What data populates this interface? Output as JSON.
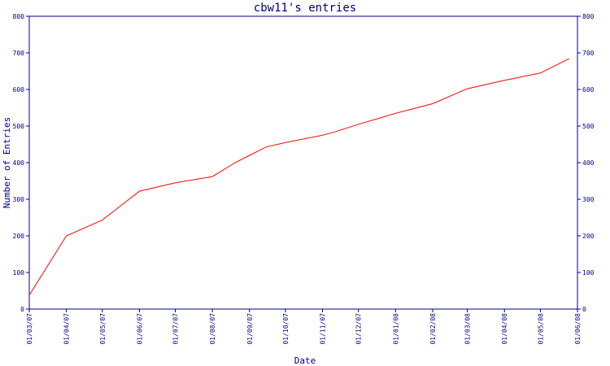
{
  "chart_data": {
    "type": "line",
    "title": "cbw11's entries",
    "xlabel": "Date",
    "ylabel": "Number of Entries",
    "ylim": [
      0,
      800
    ],
    "yticks": [
      0,
      100,
      200,
      300,
      400,
      500,
      600,
      700,
      800
    ],
    "x_tick_labels": [
      "01/03/07",
      "01/04/07",
      "01/05/07",
      "01/06/07",
      "01/07/07",
      "01/08/07",
      "01/09/07",
      "01/10/07",
      "01/11/07",
      "01/12/07",
      "01/01/08",
      "01/02/08",
      "01/03/08",
      "01/04/08",
      "01/05/08",
      "01/06/08"
    ],
    "y_axis_right": true,
    "grid": false,
    "series": [
      {
        "color": "#ff0000",
        "points": [
          {
            "x": "2007-03-01",
            "y": 38
          },
          {
            "x": "2007-04-01",
            "y": 200
          },
          {
            "x": "2007-05-01",
            "y": 243
          },
          {
            "x": "2007-06-01",
            "y": 322
          },
          {
            "x": "2007-07-01",
            "y": 345
          },
          {
            "x": "2007-08-01",
            "y": 362
          },
          {
            "x": "2007-08-20",
            "y": 400
          },
          {
            "x": "2007-09-01",
            "y": 420
          },
          {
            "x": "2007-09-15",
            "y": 443
          },
          {
            "x": "2007-10-01",
            "y": 455
          },
          {
            "x": "2007-11-01",
            "y": 475
          },
          {
            "x": "2007-11-10",
            "y": 483
          },
          {
            "x": "2007-12-01",
            "y": 505
          },
          {
            "x": "2007-12-20",
            "y": 523
          },
          {
            "x": "2008-01-01",
            "y": 535
          },
          {
            "x": "2008-02-01",
            "y": 561
          },
          {
            "x": "2008-03-01",
            "y": 602
          },
          {
            "x": "2008-04-01",
            "y": 625
          },
          {
            "x": "2008-05-01",
            "y": 645
          },
          {
            "x": "2008-05-25",
            "y": 684
          }
        ]
      }
    ]
  }
}
